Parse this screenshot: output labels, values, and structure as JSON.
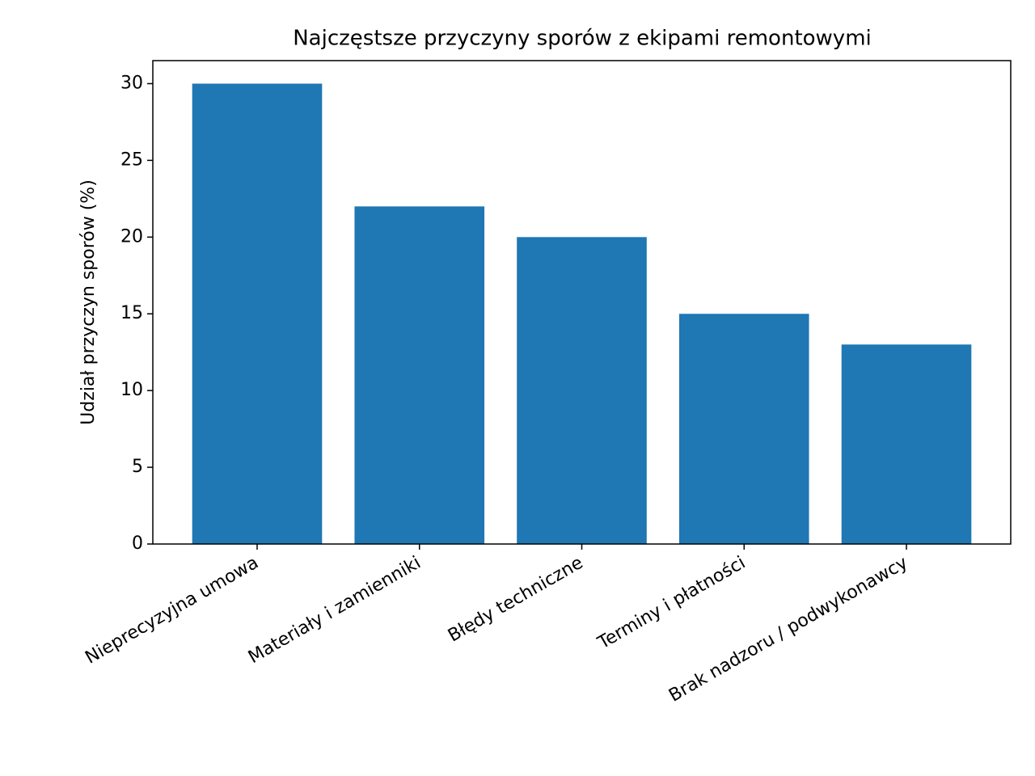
{
  "chart_data": {
    "type": "bar",
    "title": "Najczęstsze przyczyny sporów z ekipami remontowymi",
    "y_label": "Udział przyczyn sporów (%)",
    "categories": [
      "Nieprecyzyjna umowa",
      "Materiały i zamienniki",
      "Błędy techniczne",
      "Terminy i płatności",
      "Brak nadzoru / podwykonawcy"
    ],
    "values": [
      30,
      22,
      20,
      15,
      13
    ],
    "color": "#1f77b4",
    "ylim": [
      0,
      31.5
    ],
    "yticks": [
      0,
      5,
      10,
      15,
      20,
      25,
      30
    ],
    "grid": false
  }
}
